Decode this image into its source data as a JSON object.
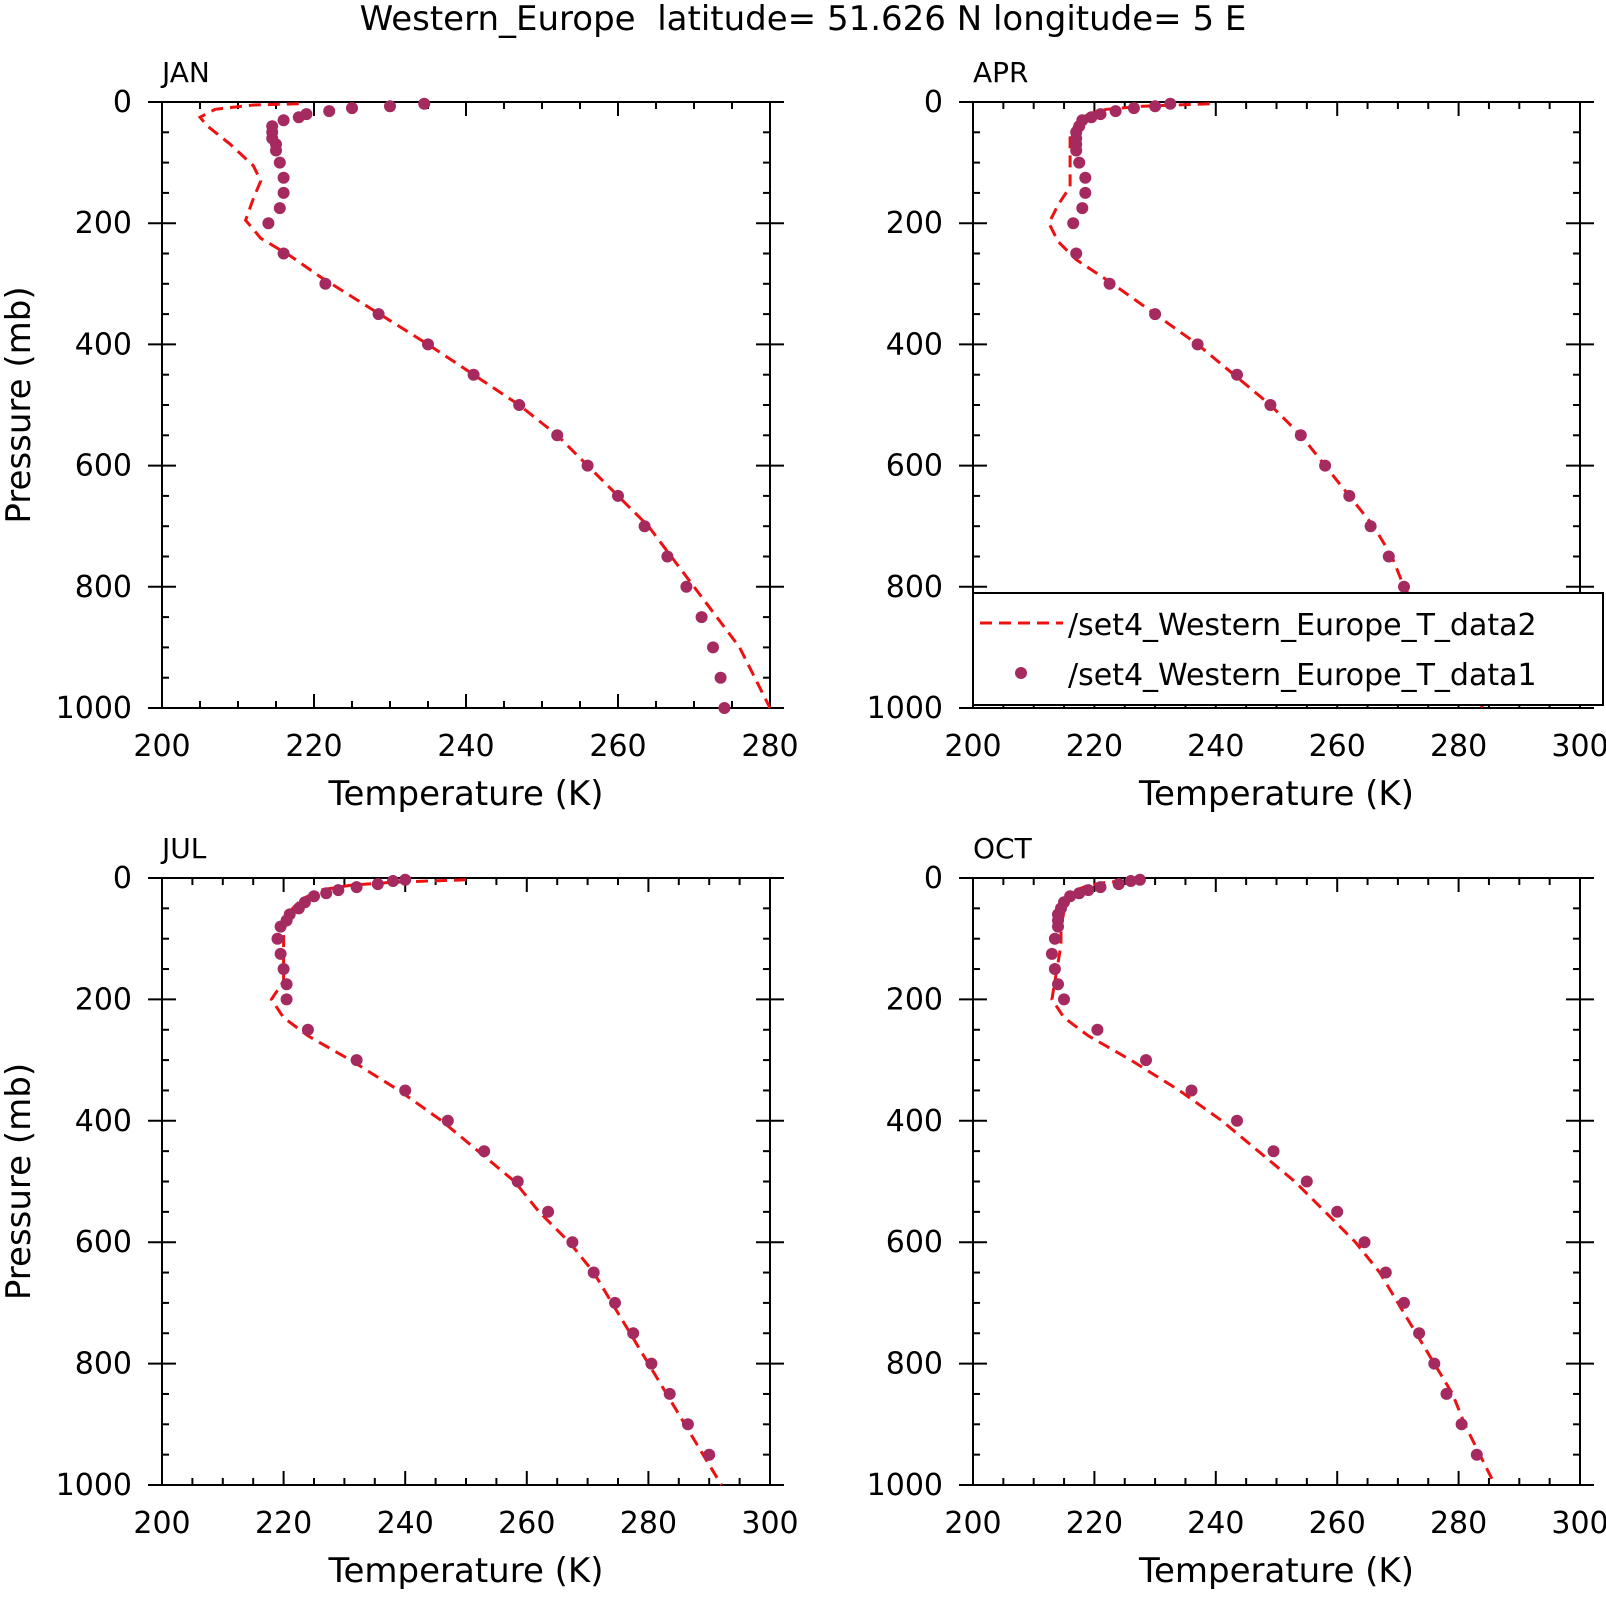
{
  "title": "Western_Europe  latitude= 51.626 N longitude= 5 E",
  "colors": {
    "model": "#ee1111",
    "obs": "#a52a5f",
    "axis": "#000000"
  },
  "legend": {
    "placement": "lower-right of APR panel",
    "entries": [
      {
        "label": "/set4_Western_Europe_T_data2",
        "style": "dashed-line"
      },
      {
        "label": "/set4_Western_Europe_T_data1",
        "style": "dot"
      }
    ]
  },
  "chart_data": [
    {
      "type": "line",
      "panel": "JAN",
      "xlabel": "Temperature (K)",
      "ylabel": "Pressure (mb)",
      "xlim": [
        200,
        280
      ],
      "ylim": [
        1000,
        0
      ],
      "xticks": [
        200,
        220,
        240,
        260,
        280
      ],
      "yticks": [
        0,
        200,
        400,
        600,
        800,
        1000
      ],
      "series": [
        {
          "name": "/set4_Western_Europe_T_data2",
          "style": "dashed-line",
          "points": [
            [
              218,
              3
            ],
            [
              212,
              5
            ],
            [
              207,
              12
            ],
            [
              205,
              25
            ],
            [
              206,
              40
            ],
            [
              209,
              70
            ],
            [
              212,
              105
            ],
            [
              213,
              130
            ],
            [
              212,
              160
            ],
            [
              211,
              195
            ],
            [
              213,
              225
            ],
            [
              217,
              255
            ],
            [
              221,
              290
            ],
            [
              228,
              345
            ],
            [
              235,
              400
            ],
            [
              241,
              450
            ],
            [
              247,
              500
            ],
            [
              252,
              550
            ],
            [
              256,
              600
            ],
            [
              260,
              650
            ],
            [
              264,
              700
            ],
            [
              267,
              750
            ],
            [
              270,
              800
            ],
            [
              273,
              850
            ],
            [
              276,
              900
            ],
            [
              278,
              950
            ],
            [
              280,
              1000
            ]
          ]
        },
        {
          "name": "/set4_Western_Europe_T_data1",
          "style": "dot",
          "points": [
            [
              234.5,
              3
            ],
            [
              230,
              7
            ],
            [
              225,
              10
            ],
            [
              222,
              15
            ],
            [
              219,
              20
            ],
            [
              218,
              25
            ],
            [
              216,
              30
            ],
            [
              214.5,
              40
            ],
            [
              214.5,
              50
            ],
            [
              214.5,
              60
            ],
            [
              215,
              70
            ],
            [
              215,
              80
            ],
            [
              215.5,
              100
            ],
            [
              216,
              125
            ],
            [
              216,
              150
            ],
            [
              215.5,
              175
            ],
            [
              214,
              200
            ],
            [
              216,
              250
            ],
            [
              221.5,
              300
            ],
            [
              228.5,
              350
            ],
            [
              235,
              400
            ],
            [
              241,
              450
            ],
            [
              247,
              500
            ],
            [
              252,
              550
            ],
            [
              256,
              600
            ],
            [
              260,
              650
            ],
            [
              263.5,
              700
            ],
            [
              266.5,
              750
            ],
            [
              269,
              800
            ],
            [
              271,
              850
            ],
            [
              272.5,
              900
            ],
            [
              273.5,
              950
            ],
            [
              274,
              1000
            ]
          ]
        }
      ]
    },
    {
      "type": "line",
      "panel": "APR",
      "xlabel": "Temperature (K)",
      "ylabel": "",
      "xlim": [
        200,
        300
      ],
      "ylim": [
        1000,
        0
      ],
      "xticks": [
        200,
        220,
        240,
        260,
        280,
        300
      ],
      "yticks": [
        0,
        200,
        400,
        600,
        800,
        1000
      ],
      "series": [
        {
          "name": "/set4_Western_Europe_T_data2",
          "style": "dashed-line",
          "points": [
            [
              239,
              3
            ],
            [
              228,
              7
            ],
            [
              222,
              12
            ],
            [
              219,
              20
            ],
            [
              217,
              35
            ],
            [
              216,
              55
            ],
            [
              216,
              80
            ],
            [
              216,
              110
            ],
            [
              216,
              140
            ],
            [
              214,
              170
            ],
            [
              212.5,
              200
            ],
            [
              214,
              230
            ],
            [
              217,
              260
            ],
            [
              223,
              300
            ],
            [
              230,
              350
            ],
            [
              237,
              400
            ],
            [
              243,
              450
            ],
            [
              249,
              500
            ],
            [
              254,
              550
            ],
            [
              258,
              600
            ],
            [
              262,
              650
            ],
            [
              266,
              700
            ],
            [
              269,
              750
            ],
            [
              271,
              800
            ],
            [
              274,
              850
            ],
            [
              277,
              900
            ],
            [
              281,
              950
            ],
            [
              284,
              1000
            ]
          ]
        },
        {
          "name": "/set4_Western_Europe_T_data1",
          "style": "dot",
          "points": [
            [
              232.5,
              3
            ],
            [
              230,
              7
            ],
            [
              226.5,
              10
            ],
            [
              223.5,
              15
            ],
            [
              221,
              20
            ],
            [
              219.5,
              25
            ],
            [
              218,
              30
            ],
            [
              217.5,
              40
            ],
            [
              217,
              50
            ],
            [
              217,
              60
            ],
            [
              217,
              70
            ],
            [
              217,
              80
            ],
            [
              217.5,
              100
            ],
            [
              218.5,
              125
            ],
            [
              218.5,
              150
            ],
            [
              218,
              175
            ],
            [
              216.5,
              200
            ],
            [
              217,
              250
            ],
            [
              222.5,
              300
            ],
            [
              230,
              350
            ],
            [
              237,
              400
            ],
            [
              243.5,
              450
            ],
            [
              249,
              500
            ],
            [
              254,
              550
            ],
            [
              258,
              600
            ],
            [
              262,
              650
            ],
            [
              265.5,
              700
            ],
            [
              268.5,
              750
            ],
            [
              271,
              800
            ],
            [
              273.5,
              850
            ],
            [
              276.5,
              900
            ],
            [
              280,
              950
            ]
          ]
        }
      ]
    },
    {
      "type": "line",
      "panel": "JUL",
      "xlabel": "Temperature (K)",
      "ylabel": "Pressure (mb)",
      "xlim": [
        200,
        300
      ],
      "ylim": [
        1000,
        0
      ],
      "xticks": [
        200,
        220,
        240,
        260,
        280,
        300
      ],
      "yticks": [
        0,
        200,
        400,
        600,
        800,
        1000
      ],
      "series": [
        {
          "name": "/set4_Western_Europe_T_data2",
          "style": "dashed-line",
          "points": [
            [
              250,
              3
            ],
            [
              238,
              7
            ],
            [
              231,
              12
            ],
            [
              226,
              20
            ],
            [
              223,
              35
            ],
            [
              221,
              55
            ],
            [
              220,
              80
            ],
            [
              220,
              110
            ],
            [
              220,
              140
            ],
            [
              220,
              170
            ],
            [
              218,
              200
            ],
            [
              220,
              230
            ],
            [
              224,
              260
            ],
            [
              231,
              300
            ],
            [
              239,
              350
            ],
            [
              246,
              400
            ],
            [
              252,
              450
            ],
            [
              258,
              500
            ],
            [
              262,
              550
            ],
            [
              267,
              600
            ],
            [
              271,
              650
            ],
            [
              274,
              700
            ],
            [
              277,
              750
            ],
            [
              280,
              800
            ],
            [
              283,
              850
            ],
            [
              286,
              900
            ],
            [
              289,
              950
            ],
            [
              292,
              1000
            ]
          ]
        },
        {
          "name": "/set4_Western_Europe_T_data1",
          "style": "dot",
          "points": [
            [
              240,
              3
            ],
            [
              238,
              5
            ],
            [
              235.5,
              10
            ],
            [
              232,
              15
            ],
            [
              229,
              20
            ],
            [
              227,
              25
            ],
            [
              225,
              30
            ],
            [
              223.5,
              40
            ],
            [
              222.5,
              50
            ],
            [
              221,
              60
            ],
            [
              220.5,
              70
            ],
            [
              219.5,
              80
            ],
            [
              219,
              100
            ],
            [
              219.5,
              125
            ],
            [
              220,
              150
            ],
            [
              220.5,
              175
            ],
            [
              220.5,
              200
            ],
            [
              224,
              250
            ],
            [
              232,
              300
            ],
            [
              240,
              350
            ],
            [
              247,
              400
            ],
            [
              253,
              450
            ],
            [
              258.5,
              500
            ],
            [
              263.5,
              550
            ],
            [
              267.5,
              600
            ],
            [
              271,
              650
            ],
            [
              274.5,
              700
            ],
            [
              277.5,
              750
            ],
            [
              280.5,
              800
            ],
            [
              283.5,
              850
            ],
            [
              286.5,
              900
            ],
            [
              290,
              950
            ]
          ]
        }
      ]
    },
    {
      "type": "line",
      "panel": "OCT",
      "xlabel": "Temperature (K)",
      "ylabel": "",
      "xlim": [
        200,
        300
      ],
      "ylim": [
        1000,
        0
      ],
      "xticks": [
        200,
        220,
        240,
        260,
        280,
        300
      ],
      "yticks": [
        0,
        200,
        400,
        600,
        800,
        1000
      ],
      "series": [
        {
          "name": "/set4_Western_Europe_T_data2",
          "style": "dashed-line",
          "points": [
            [
              228,
              3
            ],
            [
              222,
              7
            ],
            [
              219,
              12
            ],
            [
              217,
              20
            ],
            [
              215.5,
              35
            ],
            [
              215,
              55
            ],
            [
              214.5,
              80
            ],
            [
              214.5,
              110
            ],
            [
              214,
              140
            ],
            [
              213.5,
              170
            ],
            [
              213,
              200
            ],
            [
              215,
              230
            ],
            [
              219,
              260
            ],
            [
              226,
              300
            ],
            [
              234,
              350
            ],
            [
              241,
              400
            ],
            [
              247,
              450
            ],
            [
              253,
              500
            ],
            [
              258,
              550
            ],
            [
              263,
              600
            ],
            [
              267,
              650
            ],
            [
              270,
              700
            ],
            [
              273,
              750
            ],
            [
              276,
              800
            ],
            [
              279,
              850
            ],
            [
              281,
              900
            ],
            [
              283.5,
              950
            ],
            [
              286,
              1000
            ]
          ]
        },
        {
          "name": "/set4_Western_Europe_T_data1",
          "style": "dot",
          "points": [
            [
              227.5,
              3
            ],
            [
              226,
              5
            ],
            [
              224,
              10
            ],
            [
              221,
              15
            ],
            [
              219,
              20
            ],
            [
              217.5,
              25
            ],
            [
              216,
              30
            ],
            [
              215,
              40
            ],
            [
              214.5,
              50
            ],
            [
              214,
              60
            ],
            [
              214,
              70
            ],
            [
              214,
              80
            ],
            [
              213.5,
              100
            ],
            [
              213,
              125
            ],
            [
              213.5,
              150
            ],
            [
              214,
              175
            ],
            [
              215,
              200
            ],
            [
              220.5,
              250
            ],
            [
              228.5,
              300
            ],
            [
              236,
              350
            ],
            [
              243.5,
              400
            ],
            [
              249.5,
              450
            ],
            [
              255,
              500
            ],
            [
              260,
              550
            ],
            [
              264.5,
              600
            ],
            [
              268,
              650
            ],
            [
              271,
              700
            ],
            [
              273.5,
              750
            ],
            [
              276,
              800
            ],
            [
              278,
              850
            ],
            [
              280.5,
              900
            ],
            [
              283,
              950
            ]
          ]
        }
      ]
    }
  ]
}
